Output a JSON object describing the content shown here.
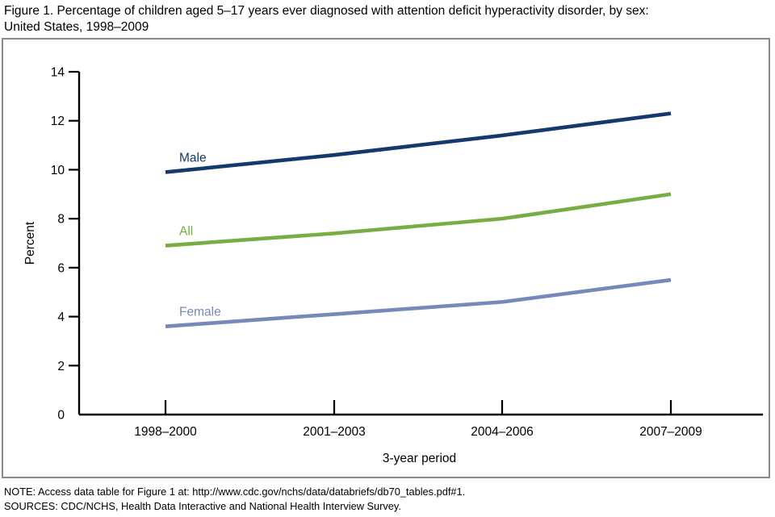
{
  "title": {
    "line1": "Figure 1. Percentage of children aged 5–17 years ever diagnosed with attention deficit hyperactivity disorder, by sex:",
    "line2": "United States, 1998–2009"
  },
  "notes": {
    "note": "NOTE: Access data table for Figure 1 at: http://www.cdc.gov/nchs/data/databriefs/db70_tables.pdf#1.",
    "sources": "SOURCES: CDC/NCHS, Health Data Interactive and National Health Interview Survey."
  },
  "chart_data": {
    "type": "line",
    "categories": [
      "1998–2000",
      "2001–2003",
      "2004–2006",
      "2007–2009"
    ],
    "series": [
      {
        "name": "Male",
        "values": [
          9.9,
          10.6,
          11.4,
          12.3
        ],
        "color": "#14396b"
      },
      {
        "name": "All",
        "values": [
          6.9,
          7.4,
          8.0,
          9.0
        ],
        "color": "#77ad43"
      },
      {
        "name": "Female",
        "values": [
          3.6,
          4.1,
          4.6,
          5.5
        ],
        "color": "#7689ba"
      }
    ],
    "xlabel": "3-year period",
    "ylabel": "Percent",
    "ylim": [
      0,
      14
    ],
    "yticks": [
      0,
      2,
      4,
      6,
      8,
      10,
      12,
      14
    ],
    "grid": false,
    "legend": "inline-labels-near-first-point",
    "axis_color": "#000000",
    "frame_color": "#8a8a8a"
  }
}
